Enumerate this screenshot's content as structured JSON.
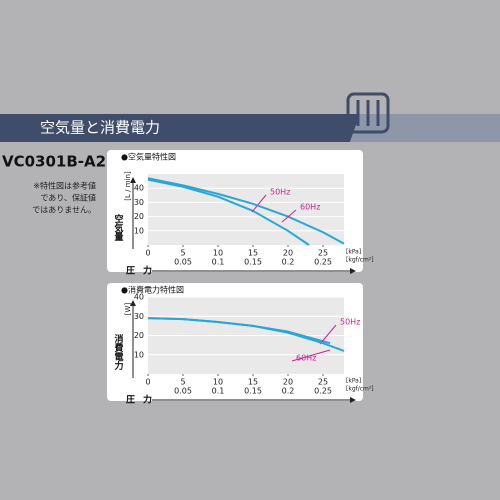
{
  "header": {
    "title": "空気量と消費電力"
  },
  "model": "VC0301B-A2",
  "note": [
    "※特性図は参考値",
    "であり、保証値",
    "ではありません。"
  ],
  "chart_data": [
    {
      "type": "line",
      "title": "●空気量特性図",
      "y_unit": "[L / min]",
      "y_label": "空気量",
      "x_label": "圧力",
      "x_unit": "[kPa]",
      "x2_unit": "[kgf/cm²]",
      "xlim": [
        0,
        28
      ],
      "xticks": [
        0,
        5,
        10,
        15,
        20,
        25
      ],
      "x2lim": [
        0,
        0.28
      ],
      "x2ticks": [
        0.05,
        0.1,
        0.15,
        0.2,
        0.25
      ],
      "ylim": [
        0,
        50
      ],
      "yticks": [
        10,
        20,
        30,
        40
      ],
      "grid": true,
      "series": [
        {
          "name": "50Hz",
          "color": "#2aa6d6",
          "x": [
            0,
            5,
            10,
            15,
            20,
            23
          ],
          "values": [
            46,
            41,
            34,
            24,
            10,
            0
          ]
        },
        {
          "name": "60Hz",
          "color": "#2aa6d6",
          "x": [
            0,
            5,
            10,
            15,
            20,
            25,
            28
          ],
          "values": [
            47,
            42,
            36,
            29,
            20,
            9,
            1
          ]
        }
      ]
    },
    {
      "type": "line",
      "title": "●消費電力特性図",
      "y_unit": "[W]",
      "y_label": "消費電力",
      "x_label": "圧力",
      "x_unit": "[kPa]",
      "x2_unit": "[kgf/cm²]",
      "xlim": [
        0,
        28
      ],
      "xticks": [
        0,
        5,
        10,
        15,
        20,
        25
      ],
      "x2lim": [
        0,
        0.28
      ],
      "x2ticks": [
        0.05,
        0.1,
        0.15,
        0.2,
        0.25
      ],
      "ylim": [
        0,
        40
      ],
      "yticks": [
        10,
        20,
        30,
        40
      ],
      "grid": true,
      "series": [
        {
          "name": "50Hz",
          "color": "#2aa6d6",
          "x": [
            0,
            5,
            10,
            15,
            20,
            26
          ],
          "values": [
            29,
            28.5,
            27,
            25,
            22,
            16
          ]
        },
        {
          "name": "60Hz",
          "color": "#2aa6d6",
          "x": [
            0,
            5,
            10,
            15,
            20,
            25,
            28
          ],
          "values": [
            29,
            28.5,
            27,
            25,
            21.5,
            16,
            12
          ]
        }
      ]
    }
  ]
}
